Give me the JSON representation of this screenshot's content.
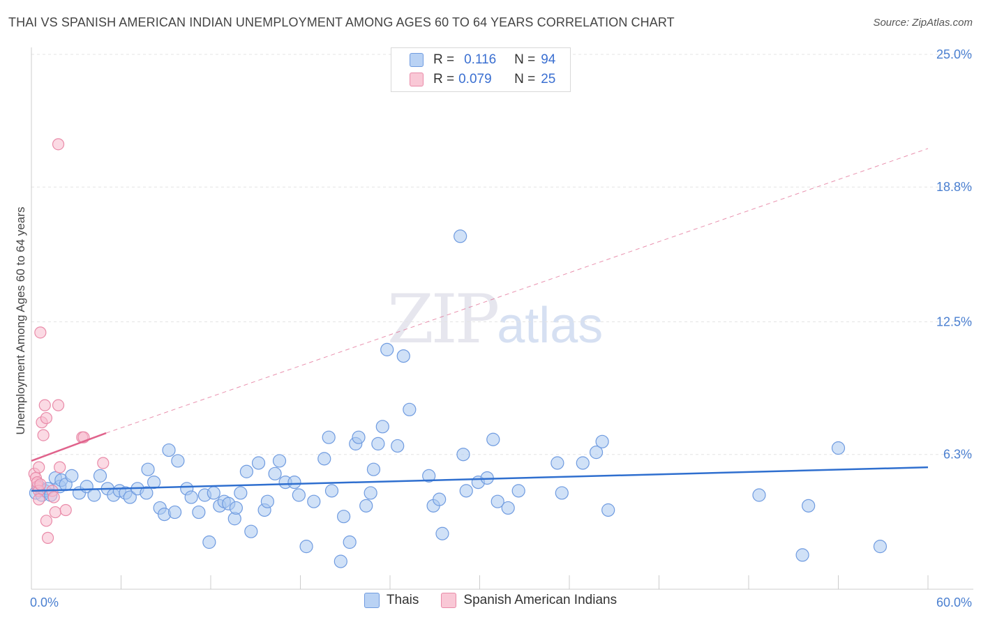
{
  "title": "THAI VS SPANISH AMERICAN INDIAN UNEMPLOYMENT AMONG AGES 60 TO 64 YEARS CORRELATION CHART",
  "source": "Source: ZipAtlas.com",
  "watermark": {
    "zip": "ZIP",
    "atlas": "atlas"
  },
  "legend": {
    "rows": [
      {
        "r_label": "R =",
        "r_value": "0.116",
        "n_label": "N =",
        "n_value": "94"
      },
      {
        "r_label": "R =",
        "r_value": "0.079",
        "n_label": "N =",
        "n_value": "25"
      }
    ]
  },
  "bottom_legend": [
    "Thais",
    "Spanish American Indians"
  ],
  "colors": {
    "thai_fill": "#aac8f0",
    "thai_stroke": "#6f9be0",
    "thai_line": "#2f6fcf",
    "sai_fill": "#f7bccd",
    "sai_stroke": "#e98aa8",
    "sai_line": "#e0638c",
    "tick_text": "#4a7fd0"
  },
  "chart_data": {
    "type": "scatter",
    "title": "THAI VS SPANISH AMERICAN INDIAN UNEMPLOYMENT AMONG AGES 60 TO 64 YEARS CORRELATION CHART",
    "xlabel": "",
    "ylabel": "Unemployment Among Ages 60 to 64 years",
    "xlim": [
      0,
      60
    ],
    "ylim": [
      0,
      25
    ],
    "x_tick_labels": [
      "0.0%",
      "60.0%"
    ],
    "y_ticks": [
      6.3,
      12.5,
      18.8,
      25.0
    ],
    "y_tick_labels": [
      "6.3%",
      "12.5%",
      "18.8%",
      "25.0%"
    ],
    "series": [
      {
        "name": "Thais",
        "r": 0.116,
        "n": 94,
        "trend": {
          "x": [
            0,
            60
          ],
          "y": [
            4.6,
            5.7
          ]
        },
        "points": [
          [
            0.3,
            4.5
          ],
          [
            0.5,
            4.8
          ],
          [
            0.7,
            4.4
          ],
          [
            0.9,
            4.6
          ],
          [
            1.1,
            4.7
          ],
          [
            1.3,
            4.4
          ],
          [
            1.6,
            5.2
          ],
          [
            1.9,
            4.8
          ],
          [
            2.0,
            5.1
          ],
          [
            2.3,
            4.9
          ],
          [
            2.7,
            5.3
          ],
          [
            3.2,
            4.5
          ],
          [
            3.7,
            4.8
          ],
          [
            4.2,
            4.4
          ],
          [
            4.6,
            5.3
          ],
          [
            5.1,
            4.7
          ],
          [
            5.5,
            4.4
          ],
          [
            5.9,
            4.6
          ],
          [
            6.3,
            4.5
          ],
          [
            6.6,
            4.3
          ],
          [
            7.1,
            4.7
          ],
          [
            7.7,
            4.5
          ],
          [
            7.8,
            5.6
          ],
          [
            8.2,
            5.0
          ],
          [
            8.6,
            3.8
          ],
          [
            8.9,
            3.5
          ],
          [
            9.2,
            6.5
          ],
          [
            9.6,
            3.6
          ],
          [
            9.8,
            6.0
          ],
          [
            10.4,
            4.7
          ],
          [
            10.7,
            4.3
          ],
          [
            11.2,
            3.6
          ],
          [
            11.6,
            4.4
          ],
          [
            11.9,
            2.2
          ],
          [
            12.2,
            4.5
          ],
          [
            12.6,
            3.9
          ],
          [
            12.9,
            4.1
          ],
          [
            13.2,
            4.0
          ],
          [
            13.6,
            3.3
          ],
          [
            14.0,
            4.5
          ],
          [
            14.4,
            5.5
          ],
          [
            14.7,
            2.7
          ],
          [
            15.2,
            5.9
          ],
          [
            15.6,
            3.7
          ],
          [
            15.8,
            4.1
          ],
          [
            16.3,
            5.4
          ],
          [
            16.6,
            6.0
          ],
          [
            17.0,
            5.0
          ],
          [
            17.6,
            5.0
          ],
          [
            17.9,
            4.4
          ],
          [
            18.4,
            2.0
          ],
          [
            18.9,
            4.1
          ],
          [
            19.6,
            6.1
          ],
          [
            19.9,
            7.1
          ],
          [
            20.1,
            4.6
          ],
          [
            20.7,
            1.3
          ],
          [
            20.9,
            3.4
          ],
          [
            21.3,
            2.2
          ],
          [
            21.7,
            6.8
          ],
          [
            21.9,
            7.1
          ],
          [
            22.4,
            3.9
          ],
          [
            22.7,
            4.5
          ],
          [
            22.9,
            5.6
          ],
          [
            23.2,
            6.8
          ],
          [
            23.5,
            7.6
          ],
          [
            23.8,
            11.2
          ],
          [
            24.5,
            6.7
          ],
          [
            24.9,
            10.9
          ],
          [
            25.3,
            8.4
          ],
          [
            26.6,
            5.3
          ],
          [
            26.9,
            3.9
          ],
          [
            27.3,
            4.2
          ],
          [
            27.5,
            2.6
          ],
          [
            28.7,
            16.5
          ],
          [
            28.9,
            6.3
          ],
          [
            29.1,
            4.6
          ],
          [
            29.9,
            5.0
          ],
          [
            30.5,
            5.2
          ],
          [
            30.9,
            7.0
          ],
          [
            31.2,
            4.1
          ],
          [
            31.9,
            3.8
          ],
          [
            32.6,
            4.6
          ],
          [
            35.2,
            5.9
          ],
          [
            35.5,
            4.5
          ],
          [
            36.9,
            5.9
          ],
          [
            37.8,
            6.4
          ],
          [
            38.2,
            6.9
          ],
          [
            38.6,
            3.7
          ],
          [
            48.7,
            4.4
          ],
          [
            51.6,
            1.6
          ],
          [
            52.0,
            3.9
          ],
          [
            54.0,
            6.6
          ],
          [
            56.8,
            2.0
          ],
          [
            13.7,
            3.8
          ]
        ]
      },
      {
        "name": "Spanish American Indians",
        "r": 0.079,
        "n": 25,
        "trend": {
          "x": [
            0,
            5.0
          ],
          "y": [
            6.0,
            7.3
          ],
          "dashed_extension": {
            "x": [
              5.0,
              60
            ],
            "y": [
              7.3,
              20.6
            ]
          }
        },
        "points": [
          [
            0.2,
            5.4
          ],
          [
            0.3,
            5.2
          ],
          [
            0.4,
            4.8
          ],
          [
            0.4,
            5.0
          ],
          [
            0.5,
            4.6
          ],
          [
            0.5,
            4.2
          ],
          [
            0.5,
            5.7
          ],
          [
            0.6,
            4.9
          ],
          [
            0.6,
            12.0
          ],
          [
            0.7,
            7.8
          ],
          [
            0.8,
            7.2
          ],
          [
            0.9,
            8.6
          ],
          [
            1.0,
            8.0
          ],
          [
            1.0,
            3.2
          ],
          [
            1.1,
            2.4
          ],
          [
            1.4,
            4.6
          ],
          [
            1.5,
            4.3
          ],
          [
            1.6,
            3.6
          ],
          [
            1.8,
            8.6
          ],
          [
            1.9,
            5.7
          ],
          [
            2.3,
            3.7
          ],
          [
            3.4,
            7.1
          ],
          [
            3.5,
            7.1
          ],
          [
            4.8,
            5.9
          ],
          [
            1.8,
            20.8
          ]
        ]
      }
    ]
  }
}
